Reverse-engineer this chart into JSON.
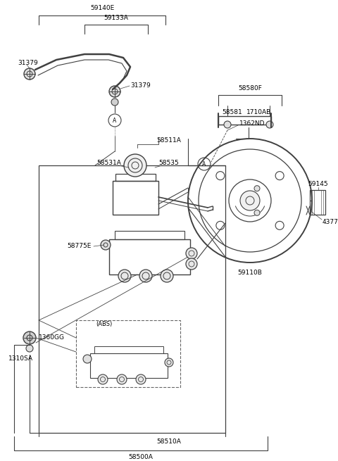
{
  "bg_color": "#ffffff",
  "line_color": "#404040",
  "font_size": 6.5,
  "figsize": [
    4.8,
    6.55
  ],
  "dpi": 100,
  "xlim": [
    0,
    480
  ],
  "ylim": [
    0,
    655
  ]
}
